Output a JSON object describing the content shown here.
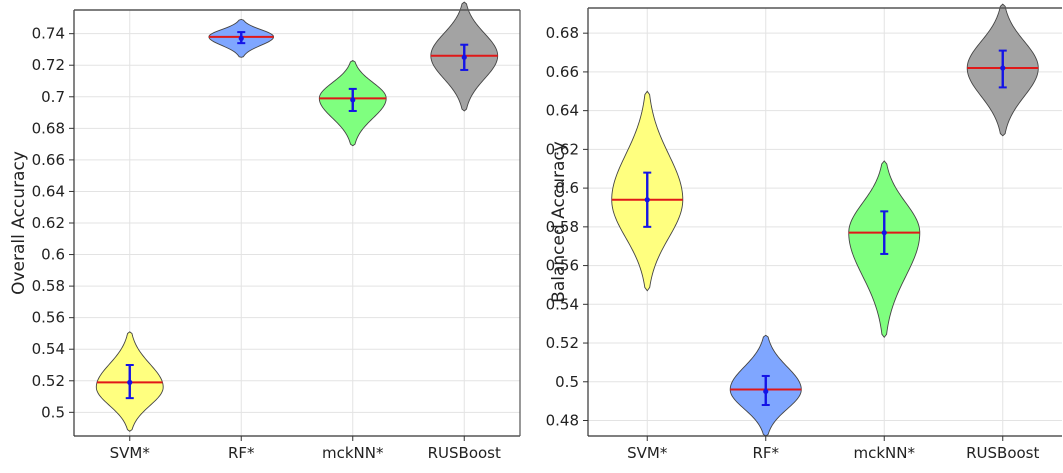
{
  "chart_data": [
    {
      "type": "violin",
      "ylabel": "Overall Accuracy",
      "categories": [
        "SVM*",
        "RF*",
        "mckNN*",
        "RUSBoost"
      ],
      "ylim": [
        0.485,
        0.755
      ],
      "yticks": [
        0.5,
        0.52,
        0.54,
        0.56,
        0.58,
        0.6,
        0.62,
        0.64,
        0.66,
        0.68,
        0.7,
        0.72,
        0.74
      ],
      "ytick_labels": [
        "0.5",
        "0.52",
        "0.54",
        "0.56",
        "0.58",
        "0.6",
        "0.62",
        "0.64",
        "0.66",
        "0.68",
        "0.7",
        "0.72",
        "0.74"
      ],
      "grid": true,
      "series": [
        {
          "category": "SVM*",
          "color": "#ffff7f",
          "min": 0.488,
          "max": 0.551,
          "median": 0.519,
          "mean": 0.519,
          "err_low": 0.509,
          "err_high": 0.53,
          "peak": 0.516,
          "halfwidth": 0.3
        },
        {
          "category": "RF*",
          "color": "#7fa6ff",
          "min": 0.725,
          "max": 0.749,
          "median": 0.738,
          "mean": 0.737,
          "err_low": 0.734,
          "err_high": 0.741,
          "peak": 0.738,
          "halfwidth": 0.29
        },
        {
          "category": "mckNN*",
          "color": "#7fff7f",
          "min": 0.669,
          "max": 0.723,
          "median": 0.699,
          "mean": 0.698,
          "err_low": 0.691,
          "err_high": 0.705,
          "peak": 0.699,
          "halfwidth": 0.3
        },
        {
          "category": "RUSBoost",
          "color": "#a3a3a3",
          "min": 0.691,
          "max": 0.76,
          "median": 0.726,
          "mean": 0.725,
          "err_low": 0.717,
          "err_high": 0.733,
          "peak": 0.726,
          "halfwidth": 0.3
        }
      ]
    },
    {
      "type": "violin",
      "ylabel": "Balanced Accuracy",
      "categories": [
        "SVM*",
        "RF*",
        "mckNN*",
        "RUSBoost"
      ],
      "ylim": [
        0.472,
        0.693
      ],
      "yticks": [
        0.48,
        0.5,
        0.52,
        0.54,
        0.56,
        0.58,
        0.6,
        0.62,
        0.64,
        0.66,
        0.68
      ],
      "ytick_labels": [
        "0.48",
        "0.5",
        "0.52",
        "0.54",
        "0.56",
        "0.58",
        "0.6",
        "0.62",
        "0.64",
        "0.66",
        "0.68"
      ],
      "grid": true,
      "series": [
        {
          "category": "SVM*",
          "color": "#ffff7f",
          "min": 0.547,
          "max": 0.65,
          "median": 0.594,
          "mean": 0.594,
          "err_low": 0.58,
          "err_high": 0.608,
          "peak": 0.594,
          "halfwidth": 0.3
        },
        {
          "category": "RF*",
          "color": "#7fa6ff",
          "min": 0.472,
          "max": 0.524,
          "median": 0.496,
          "mean": 0.495,
          "err_low": 0.488,
          "err_high": 0.503,
          "peak": 0.496,
          "halfwidth": 0.3
        },
        {
          "category": "mckNN*",
          "color": "#7fff7f",
          "min": 0.523,
          "max": 0.614,
          "median": 0.577,
          "mean": 0.577,
          "err_low": 0.566,
          "err_high": 0.588,
          "peak": 0.577,
          "halfwidth": 0.3
        },
        {
          "category": "RUSBoost",
          "color": "#a3a3a3",
          "min": 0.627,
          "max": 0.695,
          "median": 0.662,
          "mean": 0.662,
          "err_low": 0.652,
          "err_high": 0.671,
          "peak": 0.662,
          "halfwidth": 0.3
        }
      ]
    }
  ]
}
